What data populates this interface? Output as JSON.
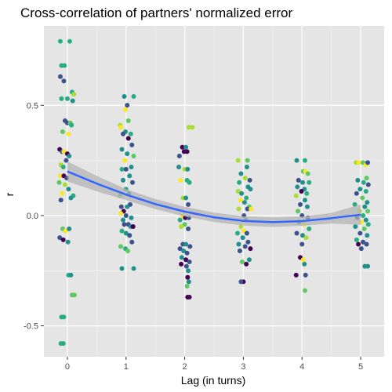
{
  "chart_data": {
    "type": "scatter",
    "title": "Cross-correlation of partners' normalized error",
    "xlabel": "Lag (in turns)",
    "ylabel": "r",
    "xlim": [
      -0.4,
      5.4
    ],
    "ylim": [
      -0.64,
      0.86
    ],
    "x_ticks": [
      0,
      1,
      2,
      3,
      4,
      5
    ],
    "x_tick_labels": [
      "0",
      "1",
      "2",
      "3",
      "4",
      "5"
    ],
    "y_ticks": [
      -0.5,
      0.0,
      0.5
    ],
    "y_tick_labels": [
      "-0.5",
      "0.0",
      "0.5"
    ],
    "grid": true,
    "background": "#e5e5e5",
    "grid_color": "#ffffff",
    "point_colors": [
      "#440154",
      "#3b528b",
      "#21908c",
      "#27ad81",
      "#5ec962",
      "#aadc32",
      "#fde725"
    ],
    "smooth": {
      "color": "#3366ff",
      "band_color": "#b3b3b3",
      "x": [
        0,
        0.5,
        1,
        1.5,
        2,
        2.5,
        3,
        3.5,
        4,
        4.5,
        5
      ],
      "y": [
        0.2,
        0.145,
        0.095,
        0.052,
        0.018,
        -0.008,
        -0.024,
        -0.03,
        -0.025,
        -0.012,
        0.004
      ],
      "upper": [
        0.245,
        0.18,
        0.12,
        0.075,
        0.04,
        0.013,
        -0.003,
        -0.008,
        -0.004,
        0.012,
        0.05
      ],
      "lower": [
        0.155,
        0.11,
        0.07,
        0.029,
        -0.004,
        -0.029,
        -0.045,
        -0.052,
        -0.046,
        -0.036,
        -0.042
      ]
    },
    "points": [
      {
        "x": -0.12,
        "y": 0.79,
        "c": 3
      },
      {
        "x": 0.04,
        "y": 0.79,
        "c": 3
      },
      {
        "x": -0.1,
        "y": 0.68,
        "c": 3
      },
      {
        "x": -0.05,
        "y": 0.68,
        "c": 3
      },
      {
        "x": -0.12,
        "y": 0.63,
        "c": 1
      },
      {
        "x": -0.06,
        "y": 0.61,
        "c": 1
      },
      {
        "x": 0.08,
        "y": 0.56,
        "c": 3
      },
      {
        "x": 0.11,
        "y": 0.55,
        "c": 5
      },
      {
        "x": -0.1,
        "y": 0.53,
        "c": 3
      },
      {
        "x": 0.0,
        "y": 0.53,
        "c": 3
      },
      {
        "x": 0.09,
        "y": 0.52,
        "c": 2
      },
      {
        "x": -0.04,
        "y": 0.43,
        "c": 1
      },
      {
        "x": 0.0,
        "y": 0.42,
        "c": 1
      },
      {
        "x": 0.05,
        "y": 0.42,
        "c": 4
      },
      {
        "x": 0.07,
        "y": 0.41,
        "c": 3
      },
      {
        "x": -0.08,
        "y": 0.38,
        "c": 4
      },
      {
        "x": 0.02,
        "y": 0.37,
        "c": 6
      },
      {
        "x": -0.13,
        "y": 0.3,
        "c": 0
      },
      {
        "x": -0.09,
        "y": 0.29,
        "c": 1
      },
      {
        "x": -0.06,
        "y": 0.29,
        "c": 6
      },
      {
        "x": 0.0,
        "y": 0.28,
        "c": 0
      },
      {
        "x": 0.03,
        "y": 0.27,
        "c": 2
      },
      {
        "x": -0.02,
        "y": 0.25,
        "c": 1
      },
      {
        "x": -0.11,
        "y": 0.23,
        "c": 5
      },
      {
        "x": -0.07,
        "y": 0.22,
        "c": 3
      },
      {
        "x": -0.12,
        "y": 0.18,
        "c": 6
      },
      {
        "x": -0.06,
        "y": 0.18,
        "c": 0
      },
      {
        "x": -0.01,
        "y": 0.17,
        "c": 1
      },
      {
        "x": -0.14,
        "y": 0.15,
        "c": 4
      },
      {
        "x": -0.04,
        "y": 0.14,
        "c": 5
      },
      {
        "x": 0.02,
        "y": 0.12,
        "c": 2
      },
      {
        "x": -0.09,
        "y": 0.1,
        "c": 6
      },
      {
        "x": 0.1,
        "y": 0.09,
        "c": 3
      },
      {
        "x": 0.06,
        "y": 0.08,
        "c": 2
      },
      {
        "x": -0.11,
        "y": 0.07,
        "c": 1
      },
      {
        "x": -0.08,
        "y": -0.06,
        "c": 4
      },
      {
        "x": -0.03,
        "y": -0.07,
        "c": 6
      },
      {
        "x": 0.03,
        "y": -0.06,
        "c": 2
      },
      {
        "x": -0.13,
        "y": -0.1,
        "c": 1
      },
      {
        "x": -0.07,
        "y": -0.11,
        "c": 0
      },
      {
        "x": 0.01,
        "y": -0.12,
        "c": 2
      },
      {
        "x": 0.02,
        "y": -0.27,
        "c": 3
      },
      {
        "x": 0.06,
        "y": -0.27,
        "c": 2
      },
      {
        "x": 0.08,
        "y": -0.36,
        "c": 4
      },
      {
        "x": 0.12,
        "y": -0.36,
        "c": 4
      },
      {
        "x": -0.1,
        "y": -0.46,
        "c": 3
      },
      {
        "x": -0.06,
        "y": -0.46,
        "c": 3
      },
      {
        "x": -0.11,
        "y": -0.58,
        "c": 3
      },
      {
        "x": -0.07,
        "y": -0.58,
        "c": 3
      },
      {
        "x": 0.97,
        "y": 0.54,
        "c": 2
      },
      {
        "x": 1.13,
        "y": 0.54,
        "c": 3
      },
      {
        "x": 1.02,
        "y": 0.5,
        "c": 1
      },
      {
        "x": 0.99,
        "y": 0.48,
        "c": 6
      },
      {
        "x": 1.04,
        "y": 0.43,
        "c": 4
      },
      {
        "x": 0.9,
        "y": 0.41,
        "c": 5
      },
      {
        "x": 0.91,
        "y": 0.4,
        "c": 6
      },
      {
        "x": 0.99,
        "y": 0.38,
        "c": 2
      },
      {
        "x": 1.08,
        "y": 0.37,
        "c": 3
      },
      {
        "x": 0.95,
        "y": 0.37,
        "c": 1
      },
      {
        "x": 1.04,
        "y": 0.35,
        "c": 0
      },
      {
        "x": 1.1,
        "y": 0.32,
        "c": 1
      },
      {
        "x": 0.93,
        "y": 0.3,
        "c": 2
      },
      {
        "x": 1.02,
        "y": 0.28,
        "c": 2
      },
      {
        "x": 1.13,
        "y": 0.27,
        "c": 4
      },
      {
        "x": 0.98,
        "y": 0.25,
        "c": 6
      },
      {
        "x": 0.93,
        "y": 0.21,
        "c": 3
      },
      {
        "x": 1.0,
        "y": 0.21,
        "c": 1
      },
      {
        "x": 1.09,
        "y": 0.22,
        "c": 2
      },
      {
        "x": 1.06,
        "y": 0.18,
        "c": 2
      },
      {
        "x": 0.95,
        "y": 0.16,
        "c": 2
      },
      {
        "x": 1.11,
        "y": 0.15,
        "c": 1
      },
      {
        "x": 1.0,
        "y": 0.12,
        "c": 3
      },
      {
        "x": 1.05,
        "y": 0.1,
        "c": 2
      },
      {
        "x": 0.9,
        "y": 0.09,
        "c": 4
      },
      {
        "x": 1.07,
        "y": 0.05,
        "c": 1
      },
      {
        "x": 1.02,
        "y": 0.04,
        "c": 2
      },
      {
        "x": 0.92,
        "y": 0.04,
        "c": 1
      },
      {
        "x": 0.96,
        "y": 0.02,
        "c": 0
      },
      {
        "x": 0.91,
        "y": 0.01,
        "c": 6
      },
      {
        "x": 1.0,
        "y": 0.0,
        "c": 1
      },
      {
        "x": 1.09,
        "y": -0.01,
        "c": 2
      },
      {
        "x": 0.95,
        "y": -0.02,
        "c": 2
      },
      {
        "x": 0.97,
        "y": -0.04,
        "c": 1
      },
      {
        "x": 1.04,
        "y": -0.04,
        "c": 1
      },
      {
        "x": 1.08,
        "y": -0.05,
        "c": 2
      },
      {
        "x": 1.12,
        "y": -0.05,
        "c": 0
      },
      {
        "x": 0.93,
        "y": -0.07,
        "c": 3
      },
      {
        "x": 1.0,
        "y": -0.08,
        "c": 2
      },
      {
        "x": 1.06,
        "y": -0.09,
        "c": 1
      },
      {
        "x": 1.1,
        "y": -0.12,
        "c": 1
      },
      {
        "x": 0.91,
        "y": -0.14,
        "c": 4
      },
      {
        "x": 0.99,
        "y": -0.15,
        "c": 3
      },
      {
        "x": 1.03,
        "y": -0.16,
        "c": 4
      },
      {
        "x": 0.93,
        "y": -0.24,
        "c": 2
      },
      {
        "x": 1.13,
        "y": -0.24,
        "c": 2
      },
      {
        "x": 1.96,
        "y": 0.31,
        "c": 0
      },
      {
        "x": 2.02,
        "y": 0.31,
        "c": 2
      },
      {
        "x": 1.99,
        "y": 0.29,
        "c": 0
      },
      {
        "x": 2.04,
        "y": 0.29,
        "c": 0
      },
      {
        "x": 1.91,
        "y": 0.27,
        "c": 1
      },
      {
        "x": 2.07,
        "y": 0.4,
        "c": 5
      },
      {
        "x": 2.13,
        "y": 0.4,
        "c": 5
      },
      {
        "x": 1.9,
        "y": 0.22,
        "c": 2
      },
      {
        "x": 2.0,
        "y": 0.21,
        "c": 5
      },
      {
        "x": 2.05,
        "y": 0.21,
        "c": 2
      },
      {
        "x": 1.93,
        "y": 0.16,
        "c": 6
      },
      {
        "x": 2.04,
        "y": 0.16,
        "c": 3
      },
      {
        "x": 2.08,
        "y": 0.15,
        "c": 3
      },
      {
        "x": 1.97,
        "y": 0.08,
        "c": 5
      },
      {
        "x": 2.02,
        "y": 0.08,
        "c": 2
      },
      {
        "x": 2.06,
        "y": 0.05,
        "c": 1
      },
      {
        "x": 1.96,
        "y": 0.0,
        "c": 6
      },
      {
        "x": 2.01,
        "y": -0.01,
        "c": 0
      },
      {
        "x": 2.07,
        "y": -0.01,
        "c": 1
      },
      {
        "x": 1.92,
        "y": -0.02,
        "c": 3
      },
      {
        "x": 2.0,
        "y": -0.04,
        "c": 4
      },
      {
        "x": 1.94,
        "y": -0.05,
        "c": 5
      },
      {
        "x": 2.06,
        "y": -0.06,
        "c": 1
      },
      {
        "x": 1.97,
        "y": -0.13,
        "c": 1
      },
      {
        "x": 2.02,
        "y": -0.13,
        "c": 2
      },
      {
        "x": 2.09,
        "y": -0.14,
        "c": 1
      },
      {
        "x": 1.92,
        "y": -0.15,
        "c": 1
      },
      {
        "x": 1.98,
        "y": -0.16,
        "c": 2
      },
      {
        "x": 2.04,
        "y": -0.17,
        "c": 1
      },
      {
        "x": 1.95,
        "y": -0.19,
        "c": 2
      },
      {
        "x": 2.02,
        "y": -0.2,
        "c": 0
      },
      {
        "x": 2.08,
        "y": -0.21,
        "c": 1
      },
      {
        "x": 1.94,
        "y": -0.22,
        "c": 0
      },
      {
        "x": 2.03,
        "y": -0.23,
        "c": 1
      },
      {
        "x": 2.06,
        "y": -0.25,
        "c": 2
      },
      {
        "x": 2.05,
        "y": -0.28,
        "c": 0
      },
      {
        "x": 2.07,
        "y": -0.3,
        "c": 2
      },
      {
        "x": 2.04,
        "y": -0.32,
        "c": 4
      },
      {
        "x": 2.05,
        "y": -0.37,
        "c": 0
      },
      {
        "x": 2.08,
        "y": -0.37,
        "c": 0
      },
      {
        "x": 2.91,
        "y": 0.25,
        "c": 5
      },
      {
        "x": 3.07,
        "y": 0.25,
        "c": 4
      },
      {
        "x": 3.06,
        "y": 0.22,
        "c": 2
      },
      {
        "x": 2.96,
        "y": 0.19,
        "c": 2
      },
      {
        "x": 3.03,
        "y": 0.17,
        "c": 5
      },
      {
        "x": 3.11,
        "y": 0.16,
        "c": 1
      },
      {
        "x": 2.93,
        "y": 0.15,
        "c": 3
      },
      {
        "x": 3.08,
        "y": 0.13,
        "c": 2
      },
      {
        "x": 3.12,
        "y": 0.12,
        "c": 2
      },
      {
        "x": 2.91,
        "y": 0.11,
        "c": 5
      },
      {
        "x": 2.97,
        "y": 0.1,
        "c": 2
      },
      {
        "x": 3.05,
        "y": 0.08,
        "c": 3
      },
      {
        "x": 2.95,
        "y": 0.07,
        "c": 6
      },
      {
        "x": 3.02,
        "y": 0.06,
        "c": 2
      },
      {
        "x": 3.1,
        "y": 0.04,
        "c": 4
      },
      {
        "x": 2.92,
        "y": 0.03,
        "c": 5
      },
      {
        "x": 3.07,
        "y": 0.03,
        "c": 1
      },
      {
        "x": 3.13,
        "y": 0.03,
        "c": 6
      },
      {
        "x": 3.01,
        "y": 0.0,
        "c": 1
      },
      {
        "x": 3.04,
        "y": -0.02,
        "c": 2
      },
      {
        "x": 2.96,
        "y": -0.05,
        "c": 5
      },
      {
        "x": 3.01,
        "y": -0.07,
        "c": 6
      },
      {
        "x": 3.06,
        "y": -0.08,
        "c": 1
      },
      {
        "x": 2.9,
        "y": -0.08,
        "c": 3
      },
      {
        "x": 2.99,
        "y": -0.1,
        "c": 2
      },
      {
        "x": 3.08,
        "y": -0.12,
        "c": 1
      },
      {
        "x": 2.92,
        "y": -0.13,
        "c": 2
      },
      {
        "x": 3.03,
        "y": -0.14,
        "c": 1
      },
      {
        "x": 3.12,
        "y": -0.15,
        "c": 0
      },
      {
        "x": 2.94,
        "y": -0.16,
        "c": 1
      },
      {
        "x": 3.1,
        "y": -0.2,
        "c": 2
      },
      {
        "x": 2.98,
        "y": -0.21,
        "c": 4
      },
      {
        "x": 3.05,
        "y": -0.22,
        "c": 0
      },
      {
        "x": 3.0,
        "y": -0.3,
        "c": 0
      },
      {
        "x": 2.96,
        "y": -0.3,
        "c": 1
      },
      {
        "x": 3.91,
        "y": 0.25,
        "c": 2
      },
      {
        "x": 4.05,
        "y": 0.25,
        "c": 3
      },
      {
        "x": 4.02,
        "y": 0.2,
        "c": 4
      },
      {
        "x": 4.06,
        "y": 0.2,
        "c": 6
      },
      {
        "x": 4.1,
        "y": 0.19,
        "c": 4
      },
      {
        "x": 3.94,
        "y": 0.16,
        "c": 1
      },
      {
        "x": 4.01,
        "y": 0.15,
        "c": 2
      },
      {
        "x": 4.12,
        "y": 0.15,
        "c": 3
      },
      {
        "x": 3.92,
        "y": 0.13,
        "c": 2
      },
      {
        "x": 4.04,
        "y": 0.12,
        "c": 2
      },
      {
        "x": 3.99,
        "y": 0.11,
        "c": 0
      },
      {
        "x": 4.08,
        "y": 0.1,
        "c": 3
      },
      {
        "x": 3.9,
        "y": 0.09,
        "c": 5
      },
      {
        "x": 4.05,
        "y": 0.07,
        "c": 2
      },
      {
        "x": 3.97,
        "y": 0.05,
        "c": 1
      },
      {
        "x": 4.09,
        "y": 0.04,
        "c": 2
      },
      {
        "x": 3.93,
        "y": 0.02,
        "c": 4
      },
      {
        "x": 4.0,
        "y": 0.0,
        "c": 1
      },
      {
        "x": 4.1,
        "y": -0.01,
        "c": 1
      },
      {
        "x": 3.95,
        "y": -0.03,
        "c": 2
      },
      {
        "x": 4.03,
        "y": -0.04,
        "c": 6
      },
      {
        "x": 4.12,
        "y": -0.06,
        "c": 3
      },
      {
        "x": 3.91,
        "y": -0.08,
        "c": 1
      },
      {
        "x": 4.01,
        "y": -0.09,
        "c": 2
      },
      {
        "x": 4.07,
        "y": -0.1,
        "c": 5
      },
      {
        "x": 4.0,
        "y": -0.13,
        "c": 1
      },
      {
        "x": 3.97,
        "y": -0.19,
        "c": 0
      },
      {
        "x": 4.02,
        "y": -0.2,
        "c": 6
      },
      {
        "x": 4.04,
        "y": -0.22,
        "c": 2
      },
      {
        "x": 3.9,
        "y": -0.27,
        "c": 0
      },
      {
        "x": 4.06,
        "y": -0.27,
        "c": 1
      },
      {
        "x": 4.05,
        "y": -0.34,
        "c": 4
      },
      {
        "x": 4.92,
        "y": 0.24,
        "c": 5
      },
      {
        "x": 4.97,
        "y": 0.24,
        "c": 6
      },
      {
        "x": 5.04,
        "y": 0.24,
        "c": 4
      },
      {
        "x": 5.09,
        "y": 0.23,
        "c": 6
      },
      {
        "x": 5.12,
        "y": 0.24,
        "c": 1
      },
      {
        "x": 5.1,
        "y": 0.17,
        "c": 4
      },
      {
        "x": 4.95,
        "y": 0.16,
        "c": 2
      },
      {
        "x": 5.05,
        "y": 0.15,
        "c": 3
      },
      {
        "x": 5.13,
        "y": 0.14,
        "c": 1
      },
      {
        "x": 4.99,
        "y": 0.12,
        "c": 2
      },
      {
        "x": 5.09,
        "y": 0.11,
        "c": 3
      },
      {
        "x": 4.93,
        "y": 0.1,
        "c": 1
      },
      {
        "x": 5.03,
        "y": 0.08,
        "c": 4
      },
      {
        "x": 5.11,
        "y": 0.06,
        "c": 2
      },
      {
        "x": 4.9,
        "y": 0.05,
        "c": 3
      },
      {
        "x": 5.07,
        "y": 0.04,
        "c": 2
      },
      {
        "x": 4.98,
        "y": 0.02,
        "c": 5
      },
      {
        "x": 5.12,
        "y": 0.02,
        "c": 4
      },
      {
        "x": 5.04,
        "y": 0.0,
        "c": 3
      },
      {
        "x": 4.94,
        "y": -0.01,
        "c": 1
      },
      {
        "x": 5.09,
        "y": -0.02,
        "c": 2
      },
      {
        "x": 5.01,
        "y": -0.03,
        "c": 6
      },
      {
        "x": 5.13,
        "y": -0.04,
        "c": 3
      },
      {
        "x": 4.91,
        "y": -0.05,
        "c": 2
      },
      {
        "x": 5.06,
        "y": -0.06,
        "c": 4
      },
      {
        "x": 4.99,
        "y": -0.08,
        "c": 1
      },
      {
        "x": 5.11,
        "y": -0.09,
        "c": 2
      },
      {
        "x": 4.93,
        "y": -0.11,
        "c": 3
      },
      {
        "x": 5.04,
        "y": -0.12,
        "c": 1
      },
      {
        "x": 5.1,
        "y": -0.13,
        "c": 1
      },
      {
        "x": 4.96,
        "y": -0.13,
        "c": 0
      },
      {
        "x": 5.01,
        "y": -0.15,
        "c": 1
      },
      {
        "x": 5.07,
        "y": -0.23,
        "c": 2
      },
      {
        "x": 5.12,
        "y": -0.23,
        "c": 2
      }
    ]
  }
}
